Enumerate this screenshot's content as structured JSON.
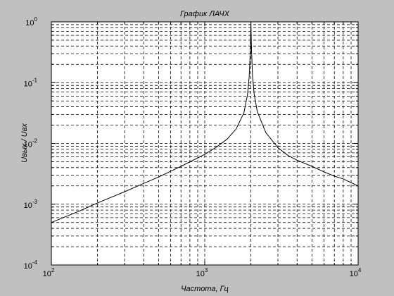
{
  "chart_data": {
    "type": "line",
    "title": "График ЛАЧХ",
    "xlabel": "Частота, Гц",
    "ylabel": "Uвых / Uвх",
    "xscale": "log",
    "yscale": "log",
    "xlim": [
      100,
      10000
    ],
    "ylim": [
      0.0001,
      1
    ],
    "grid": true,
    "x_ticks": [
      {
        "value": 100,
        "base": "10",
        "exp": "2"
      },
      {
        "value": 1000,
        "base": "10",
        "exp": "3"
      },
      {
        "value": 10000,
        "base": "10",
        "exp": "4"
      }
    ],
    "y_ticks": [
      {
        "value": 0.0001,
        "base": "10",
        "exp": "-4"
      },
      {
        "value": 0.001,
        "base": "10",
        "exp": "-3"
      },
      {
        "value": 0.01,
        "base": "10",
        "exp": "-2"
      },
      {
        "value": 0.1,
        "base": "10",
        "exp": "-1"
      },
      {
        "value": 1,
        "base": "10",
        "exp": "0"
      }
    ],
    "series": [
      {
        "color": "#000000",
        "x": [
          100,
          150,
          200,
          300,
          400,
          500,
          700,
          1000,
          1200,
          1400,
          1600,
          1800,
          1900,
          1950,
          1980,
          2000,
          2020,
          2050,
          2100,
          2200,
          2500,
          3000,
          3500,
          4000,
          5000,
          6000,
          7000,
          8000,
          10000
        ],
        "y": [
          0.0005,
          0.00076,
          0.00105,
          0.0016,
          0.0022,
          0.0028,
          0.0042,
          0.0066,
          0.0088,
          0.0118,
          0.0172,
          0.0318,
          0.0635,
          0.127,
          0.32,
          1.0,
          0.32,
          0.128,
          0.065,
          0.0335,
          0.0151,
          0.0085,
          0.0063,
          0.0053,
          0.0042,
          0.0034,
          0.0029,
          0.0026,
          0.002
        ]
      }
    ]
  }
}
